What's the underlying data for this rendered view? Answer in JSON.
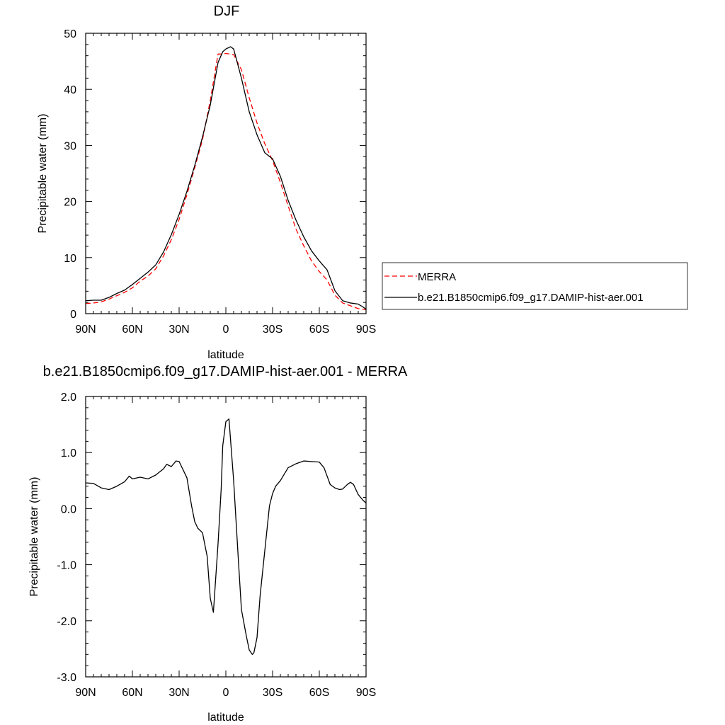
{
  "chart_data": [
    {
      "type": "line",
      "title": "DJF",
      "xlabel": "latitude",
      "ylabel": "Precipitable water (mm)",
      "xlim": [
        90,
        -90
      ],
      "ylim": [
        0,
        50
      ],
      "x_ticks": [
        90,
        60,
        30,
        0,
        -30,
        -60,
        -90
      ],
      "x_tick_labels": [
        "90N",
        "60N",
        "30N",
        "0",
        "30S",
        "60S",
        "90S"
      ],
      "y_ticks": [
        0,
        10,
        20,
        30,
        40,
        50
      ],
      "y_tick_labels": [
        "0",
        "10",
        "20",
        "30",
        "40",
        "50"
      ],
      "legend_position": "right",
      "series": [
        {
          "name": "MERRA",
          "color": "#ff0000",
          "dash": "dashed",
          "x": [
            90,
            85,
            80,
            75,
            70,
            65,
            60,
            55,
            50,
            45,
            40,
            35,
            30,
            25,
            20,
            15,
            10,
            5,
            2,
            0,
            -5,
            -10,
            -15,
            -20,
            -25,
            -30,
            -35,
            -40,
            -45,
            -50,
            -55,
            -60,
            -65,
            -70,
            -75,
            -80,
            -85,
            -88,
            -90
          ],
          "y": [
            1.8,
            1.9,
            2.1,
            2.6,
            3.2,
            3.8,
            4.6,
            5.8,
            6.7,
            8.0,
            10.3,
            13.2,
            16.8,
            21.2,
            26.0,
            31.0,
            38.0,
            46.3,
            46.3,
            46.4,
            46.2,
            43.5,
            38.5,
            34.0,
            30.3,
            27.3,
            23.4,
            19.2,
            15.1,
            12.1,
            9.4,
            7.5,
            6.0,
            3.3,
            1.9,
            1.4,
            0.9,
            0.8,
            0.7
          ]
        },
        {
          "name": "b.e21.B1850cmip6.f09_g17.DAMIP-hist-aer.001",
          "color": "#000000",
          "dash": "solid",
          "x": [
            90,
            85,
            80,
            75,
            70,
            65,
            60,
            55,
            50,
            45,
            40,
            35,
            30,
            25,
            20,
            15,
            10,
            5,
            2,
            0,
            -3,
            -5,
            -10,
            -15,
            -20,
            -25,
            -30,
            -35,
            -40,
            -45,
            -50,
            -55,
            -60,
            -65,
            -70,
            -75,
            -80,
            -85,
            -88,
            -90
          ],
          "y": [
            2.3,
            2.4,
            2.4,
            2.9,
            3.6,
            4.2,
            5.2,
            6.3,
            7.4,
            8.7,
            11.0,
            14.1,
            17.7,
            21.8,
            26.4,
            31.5,
            37.2,
            44.8,
            46.7,
            47.2,
            47.6,
            47.2,
            42.0,
            36.0,
            31.9,
            28.7,
            27.6,
            24.5,
            20.2,
            16.7,
            13.7,
            11.2,
            9.4,
            7.8,
            4.1,
            2.3,
            1.9,
            1.7,
            1.2,
            0.8
          ]
        }
      ]
    },
    {
      "type": "line",
      "title": "b.e21.B1850cmip6.f09_g17.DAMIP-hist-aer.001 - MERRA",
      "xlabel": "latitude",
      "ylabel": "Precipitable water (mm)",
      "xlim": [
        90,
        -90
      ],
      "ylim": [
        -3.0,
        2.0
      ],
      "x_ticks": [
        90,
        60,
        30,
        0,
        -30,
        -60,
        -90
      ],
      "x_tick_labels": [
        "90N",
        "60N",
        "30N",
        "0",
        "30S",
        "60S",
        "90S"
      ],
      "y_ticks": [
        -3.0,
        -2.0,
        -1.0,
        0.0,
        1.0,
        2.0
      ],
      "y_tick_labels": [
        "-3.0",
        "-2.0",
        "-1.0",
        "0.0",
        "1.0",
        "2.0"
      ],
      "series": [
        {
          "color": "#000000",
          "dash": "solid",
          "x": [
            90,
            85,
            80,
            75,
            70,
            65,
            62,
            60,
            55,
            50,
            45,
            40,
            38,
            35,
            32,
            30,
            25,
            22,
            20,
            18,
            15,
            12,
            10,
            8,
            5,
            3,
            2,
            0,
            -2,
            -5,
            -8,
            -10,
            -13,
            -15,
            -17,
            -18,
            -20,
            -22,
            -25,
            -28,
            -30,
            -32,
            -35,
            -40,
            -45,
            -50,
            -55,
            -60,
            -63,
            -65,
            -67,
            -70,
            -73,
            -75,
            -78,
            -80,
            -82,
            -85,
            -88,
            -90
          ],
          "y": [
            0.46,
            0.45,
            0.37,
            0.34,
            0.4,
            0.48,
            0.58,
            0.53,
            0.56,
            0.53,
            0.6,
            0.71,
            0.79,
            0.75,
            0.85,
            0.84,
            0.55,
            0.05,
            -0.23,
            -0.35,
            -0.43,
            -0.85,
            -1.6,
            -1.85,
            -0.62,
            0.35,
            1.12,
            1.55,
            1.6,
            0.5,
            -0.9,
            -1.8,
            -2.25,
            -2.52,
            -2.6,
            -2.57,
            -2.3,
            -1.55,
            -0.75,
            0.05,
            0.27,
            0.4,
            0.5,
            0.73,
            0.8,
            0.85,
            0.84,
            0.83,
            0.73,
            0.58,
            0.43,
            0.37,
            0.34,
            0.35,
            0.43,
            0.47,
            0.43,
            0.25,
            0.15,
            0.1
          ]
        }
      ]
    }
  ]
}
